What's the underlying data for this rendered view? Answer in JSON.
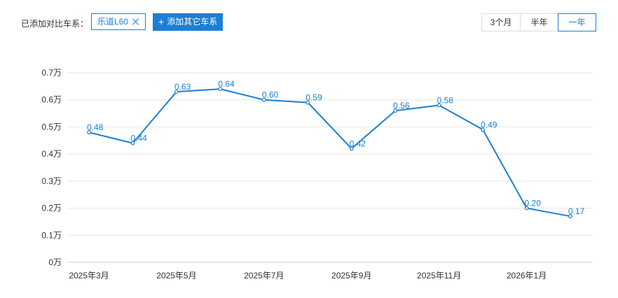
{
  "toolbar": {
    "compare_label": "已添加对比车系：",
    "series_tag": "乐道L60",
    "add_button": "添加其它车系",
    "ranges": [
      {
        "label": "3个月",
        "active": false
      },
      {
        "label": "半年",
        "active": false
      },
      {
        "label": "一年",
        "active": true
      }
    ]
  },
  "colors": {
    "accent": "#1a7fd4",
    "grid": "#e6e6e6",
    "axis": "#cccccc"
  },
  "chart_data": {
    "type": "line",
    "x": [
      "2025年3月",
      "2025年4月",
      "2025年5月",
      "2025年6月",
      "2025年7月",
      "2025年8月",
      "2025年9月",
      "2025年10月",
      "2025年11月",
      "2025年12月",
      "2026年1月",
      "2026年2月"
    ],
    "x_tick_labels": [
      "2025年3月",
      "2025年5月",
      "2025年7月",
      "2025年9月",
      "2025年11月",
      "2026年1月"
    ],
    "y_tick_labels": [
      "0万",
      "0.1万",
      "0.2万",
      "0.3万",
      "0.4万",
      "0.5万",
      "0.6万",
      "0.7万"
    ],
    "series": [
      {
        "values": [
          0.48,
          0.44,
          0.63,
          0.64,
          0.6,
          0.59,
          0.42,
          0.56,
          0.58,
          0.49,
          0.2,
          0.17
        ]
      }
    ],
    "data_labels": [
      "0.48",
      "0.44",
      "0.63",
      "0.64",
      "0.60",
      "0.59",
      "0.42",
      "0.56",
      "0.58",
      "0.49",
      "0.20",
      "0.17"
    ],
    "ylim": [
      0,
      0.7
    ],
    "grid": true,
    "legend": "none"
  }
}
